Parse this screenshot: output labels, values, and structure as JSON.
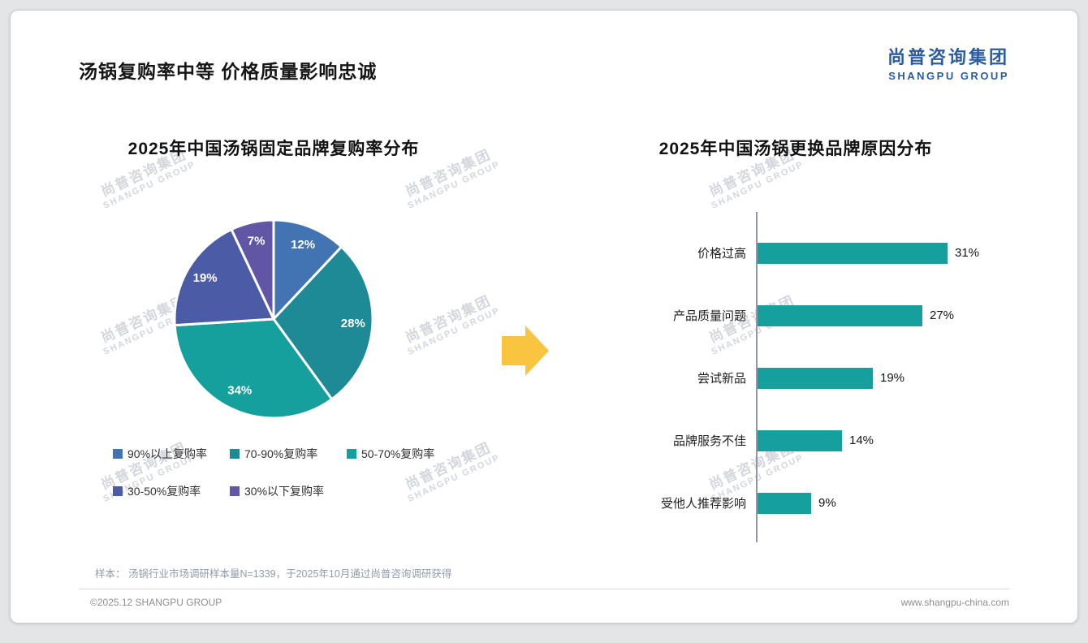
{
  "header": {
    "title": "汤锅复购率中等 价格质量影响忠诚",
    "logo_cn": "尚普咨询集团",
    "logo_en": "SHANGPU GROUP",
    "logo_color": "#2b5c9e"
  },
  "watermark": {
    "line1": "尚普咨询集团",
    "line2": "SHANGPU GROUP"
  },
  "arrow_color": "#f9c440",
  "chart_data": [
    {
      "type": "pie",
      "title": "2025年中国汤锅固定品牌复购率分布",
      "labels": [
        "90%以上复购率",
        "70-90%复购率",
        "50-70%复购率",
        "30-50%复购率",
        "30%以下复购率"
      ],
      "values": [
        12,
        28,
        34,
        19,
        7
      ],
      "unit": "%",
      "colors": [
        "#4273b3",
        "#1e8a96",
        "#15a09e",
        "#4b5ba6",
        "#6156a6"
      ],
      "label_color": "#ffffff",
      "legend_position": "bottom",
      "start_angle": "top",
      "direction": "clockwise"
    },
    {
      "type": "bar",
      "orientation": "horizontal",
      "title": "2025年中国汤锅更换品牌原因分布",
      "categories": [
        "价格过高",
        "产品质量问题",
        "尝试新品",
        "品牌服务不佳",
        "受他人推荐影响"
      ],
      "values": [
        31,
        27,
        19,
        14,
        9
      ],
      "unit": "%",
      "bar_color": "#15a09e",
      "xlim": [
        0,
        35
      ],
      "grid": false,
      "value_labels": "end-of-bar"
    }
  ],
  "footer": {
    "note": "样本： 汤锅行业市场调研样本量N=1339，于2025年10月通过尚普咨询调研获得",
    "copyright": "©2025.12 SHANGPU GROUP",
    "website": "www.shangpu-china.com"
  }
}
